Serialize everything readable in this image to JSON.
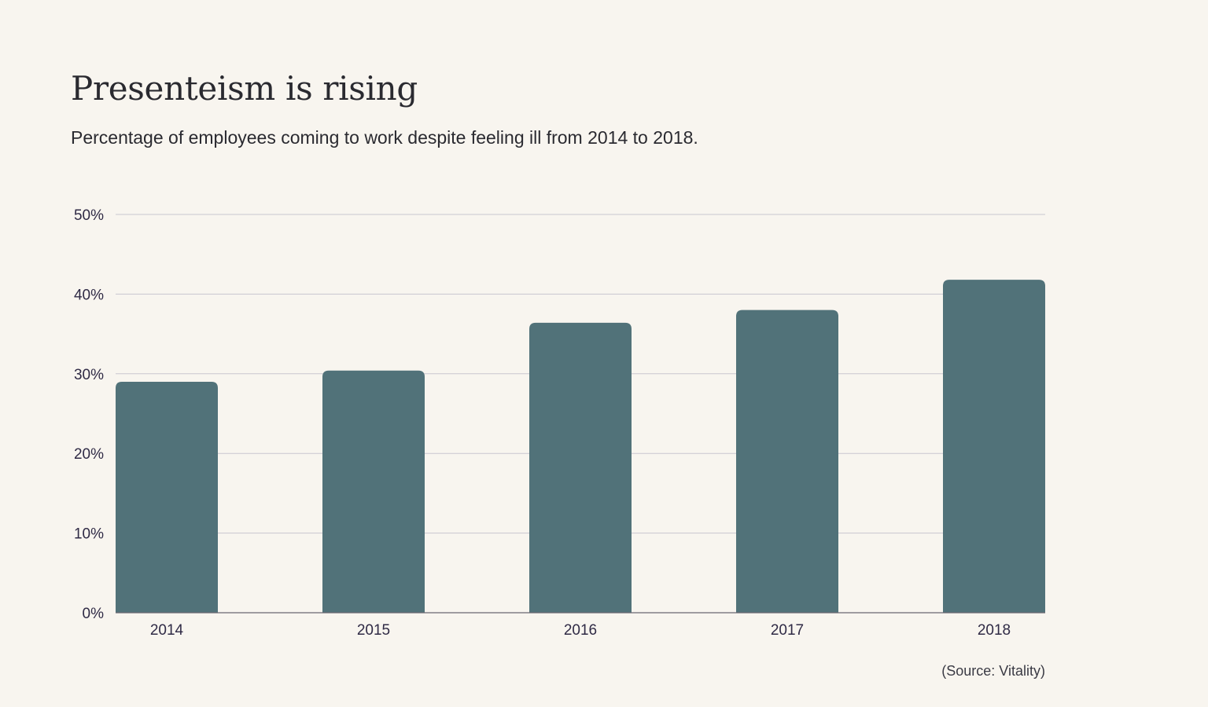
{
  "title": "Presenteism is rising",
  "subtitle": "Percentage of employees coming to work despite feeling ill from 2014 to 2018.",
  "source": "(Source: Vitality)",
  "colors": {
    "background": "#f8f5ef",
    "bar": "#517279",
    "grid": "#c9c6cf",
    "axis": "#6a6770"
  },
  "chart_data": {
    "type": "bar",
    "title": "Presenteism is rising",
    "subtitle": "Percentage of employees coming to work despite feeling ill from 2014 to 2018.",
    "xlabel": "",
    "ylabel": "",
    "categories": [
      "2014",
      "2015",
      "2016",
      "2017",
      "2018"
    ],
    "values": [
      29,
      30.4,
      36.4,
      38,
      41.8
    ],
    "ylim": [
      0,
      50
    ],
    "yticks": [
      0,
      10,
      20,
      30,
      40,
      50
    ],
    "ytick_labels": [
      "0%",
      "10%",
      "20%",
      "30%",
      "40%",
      "50%"
    ],
    "grid": true,
    "legend": "none"
  }
}
